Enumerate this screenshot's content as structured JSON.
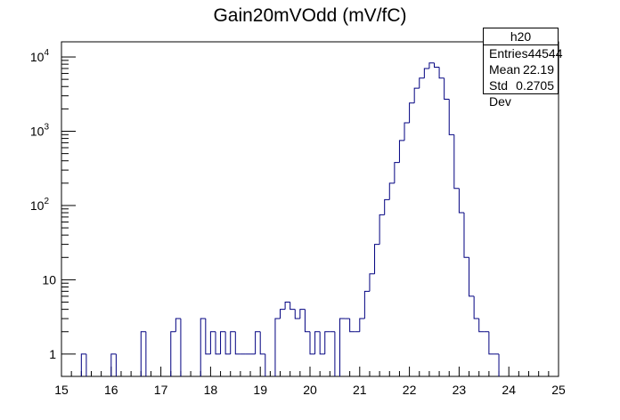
{
  "title": "Gain20mVOdd (mV/fC)",
  "stats": {
    "name": "h20",
    "rows": [
      {
        "label": "Entries",
        "value": "44544"
      },
      {
        "label": "Mean",
        "value": "22.19"
      },
      {
        "label": "Std Dev",
        "value": "0.2705"
      }
    ]
  },
  "chart_data": {
    "type": "histogram",
    "title": "Gain20mVOdd (mV/fC)",
    "xlabel": "",
    "ylabel": "",
    "xlim": [
      15,
      25
    ],
    "ylim": [
      0.5,
      16000
    ],
    "y_scale": "log",
    "grid": false,
    "bin_width": 0.1,
    "x_ticks": [
      "15",
      "16",
      "17",
      "18",
      "19",
      "20",
      "21",
      "22",
      "23",
      "24",
      "25"
    ],
    "y_ticks": [
      {
        "value": 1,
        "label": "1"
      },
      {
        "value": 10,
        "label": "10"
      },
      {
        "value": 100,
        "label": "10",
        "exp": "2"
      },
      {
        "value": 1000,
        "label": "10",
        "exp": "3"
      },
      {
        "value": 10000,
        "label": "10",
        "exp": "4"
      }
    ],
    "line_color": "#000080",
    "bins": [
      {
        "x": 15.4,
        "y": 1
      },
      {
        "x": 16.0,
        "y": 1
      },
      {
        "x": 16.6,
        "y": 2
      },
      {
        "x": 17.2,
        "y": 2
      },
      {
        "x": 17.3,
        "y": 3
      },
      {
        "x": 17.8,
        "y": 3
      },
      {
        "x": 17.9,
        "y": 1
      },
      {
        "x": 18.0,
        "y": 2
      },
      {
        "x": 18.1,
        "y": 1
      },
      {
        "x": 18.2,
        "y": 2
      },
      {
        "x": 18.3,
        "y": 1
      },
      {
        "x": 18.4,
        "y": 2
      },
      {
        "x": 18.5,
        "y": 1
      },
      {
        "x": 18.6,
        "y": 1
      },
      {
        "x": 18.7,
        "y": 1
      },
      {
        "x": 18.8,
        "y": 1
      },
      {
        "x": 18.9,
        "y": 2
      },
      {
        "x": 19.0,
        "y": 1
      },
      {
        "x": 19.3,
        "y": 3
      },
      {
        "x": 19.4,
        "y": 4
      },
      {
        "x": 19.5,
        "y": 5
      },
      {
        "x": 19.6,
        "y": 4
      },
      {
        "x": 19.7,
        "y": 3
      },
      {
        "x": 19.8,
        "y": 4
      },
      {
        "x": 19.9,
        "y": 2
      },
      {
        "x": 20.0,
        "y": 1
      },
      {
        "x": 20.1,
        "y": 2
      },
      {
        "x": 20.2,
        "y": 1
      },
      {
        "x": 20.3,
        "y": 2
      },
      {
        "x": 20.4,
        "y": 2
      },
      {
        "x": 20.6,
        "y": 3
      },
      {
        "x": 20.7,
        "y": 3
      },
      {
        "x": 20.8,
        "y": 2
      },
      {
        "x": 20.9,
        "y": 2
      },
      {
        "x": 21.0,
        "y": 3
      },
      {
        "x": 21.1,
        "y": 7
      },
      {
        "x": 21.2,
        "y": 12
      },
      {
        "x": 21.3,
        "y": 30
      },
      {
        "x": 21.4,
        "y": 75
      },
      {
        "x": 21.5,
        "y": 120
      },
      {
        "x": 21.6,
        "y": 200
      },
      {
        "x": 21.7,
        "y": 380
      },
      {
        "x": 21.8,
        "y": 750
      },
      {
        "x": 21.9,
        "y": 1300
      },
      {
        "x": 22.0,
        "y": 2400
      },
      {
        "x": 22.1,
        "y": 3800
      },
      {
        "x": 22.2,
        "y": 5200
      },
      {
        "x": 22.3,
        "y": 7000
      },
      {
        "x": 22.4,
        "y": 8300
      },
      {
        "x": 22.5,
        "y": 7300
      },
      {
        "x": 22.6,
        "y": 5200
      },
      {
        "x": 22.7,
        "y": 2700
      },
      {
        "x": 22.8,
        "y": 900
      },
      {
        "x": 22.9,
        "y": 170
      },
      {
        "x": 23.0,
        "y": 80
      },
      {
        "x": 23.1,
        "y": 20
      },
      {
        "x": 23.2,
        "y": 6
      },
      {
        "x": 23.3,
        "y": 3
      },
      {
        "x": 23.4,
        "y": 2
      },
      {
        "x": 23.5,
        "y": 2
      },
      {
        "x": 23.6,
        "y": 1
      },
      {
        "x": 23.7,
        "y": 1
      }
    ]
  }
}
